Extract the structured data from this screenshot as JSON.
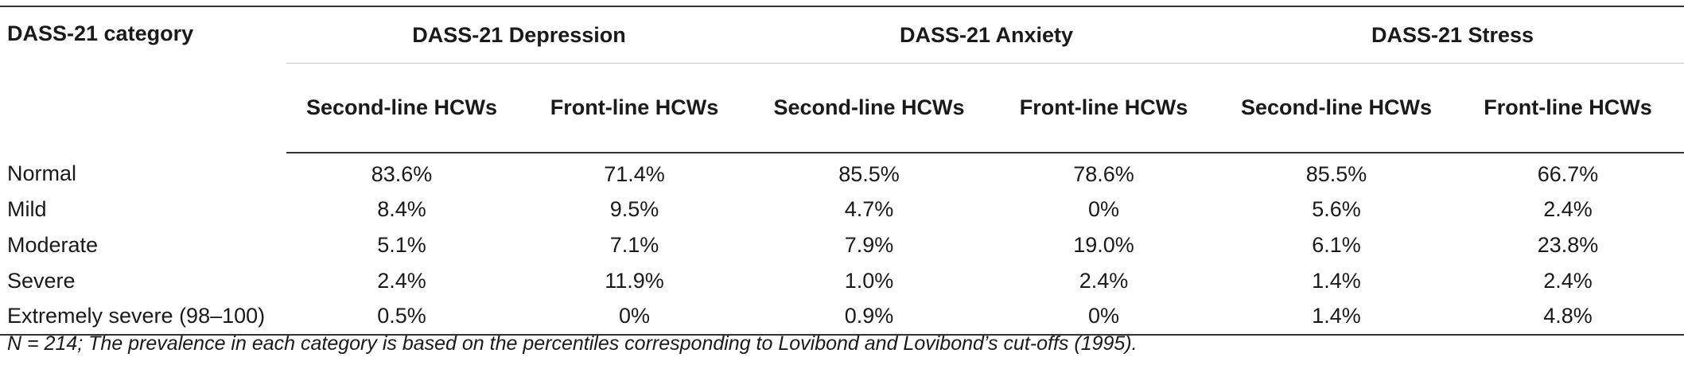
{
  "table": {
    "corner_header": "DASS-21 category",
    "groups": [
      "DASS-21 Depression",
      "DASS-21 Anxiety",
      "DASS-21 Stress"
    ],
    "subheaders": [
      "Second-line HCWs",
      "Front-line HCWs",
      "Second-line HCWs",
      "Front-line HCWs",
      "Second-line HCWs",
      "Front-line HCWs"
    ],
    "rows": [
      {
        "label": "Normal",
        "values": [
          "83.6%",
          "71.4%",
          "85.5%",
          "78.6%",
          "85.5%",
          "66.7%"
        ]
      },
      {
        "label": "Mild",
        "values": [
          "8.4%",
          "9.5%",
          "4.7%",
          "0%",
          "5.6%",
          "2.4%"
        ]
      },
      {
        "label": "Moderate",
        "values": [
          "5.1%",
          "7.1%",
          "7.9%",
          "19.0%",
          "6.1%",
          "23.8%"
        ]
      },
      {
        "label": "Severe",
        "values": [
          "2.4%",
          "11.9%",
          "1.0%",
          "2.4%",
          "1.4%",
          "2.4%"
        ]
      },
      {
        "label": "Extremely severe (98–100)",
        "values": [
          "0.5%",
          "0%",
          "0.9%",
          "0%",
          "1.4%",
          "4.8%"
        ]
      }
    ]
  },
  "footnote": "N = 214; The prevalence in each category is based on the percentiles corresponding to Lovibond and Lovibond’s cut-offs (1995)."
}
